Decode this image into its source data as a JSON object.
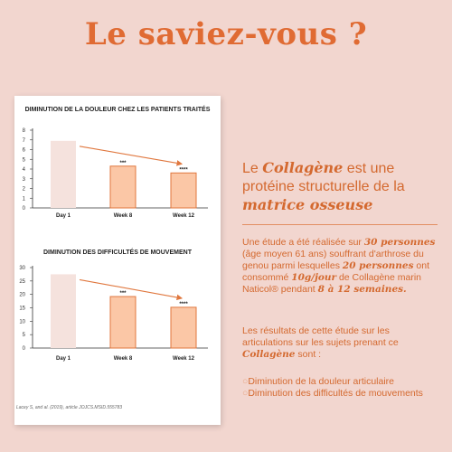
{
  "headline": "Le saviez-vous ?",
  "chart_data": [
    {
      "type": "bar",
      "title": "DIMINUTION DE LA DOULEUR CHEZ LES PATIENTS TRAITÉS",
      "categories": [
        "Day 1",
        "Week 8",
        "Week 12"
      ],
      "values": [
        6.9,
        4.3,
        3.6
      ],
      "significance": [
        "",
        "***",
        "****"
      ],
      "ylim": [
        0,
        8
      ],
      "yticks": [
        "0",
        "1",
        "2",
        "3",
        "4",
        "5",
        "6",
        "7",
        "8"
      ],
      "trend_arrow": true,
      "colors": {
        "baseline": "#f5e2dd",
        "treated": "#fbc7a6",
        "treated_border": "#e0773e",
        "arrow": "#e0773e"
      }
    },
    {
      "type": "bar",
      "title": "DIMINUTION DES DIFFICULTÉS DE MOUVEMENT",
      "categories": [
        "Day 1",
        "Week 8",
        "Week 12"
      ],
      "values": [
        27.5,
        19.2,
        15.2
      ],
      "significance": [
        "",
        "***",
        "****"
      ],
      "ylim": [
        0,
        30
      ],
      "yticks": [
        "0",
        "5",
        "10",
        "15",
        "20",
        "25",
        "30"
      ],
      "trend_arrow": true,
      "colors": {
        "baseline": "#f5e2dd",
        "treated": "#fbc7a6",
        "treated_border": "#e0773e",
        "arrow": "#e0773e"
      }
    }
  ],
  "citation": "Lacey S, and al. (2019), article JOJCS.MSID.555783",
  "lead": {
    "part1": "Le ",
    "collagen": "Collagène",
    "part2": " est une protéine structurelle de la ",
    "matrix": "matrice osseuse"
  },
  "study": {
    "t1": "Une étude a été réalisée sur ",
    "n1": "30 personnes",
    "t2": " (âge moyen 61 ans) souffrant d'arthrose du genou parmi lesquelles ",
    "n2": "20 personnes",
    "t3": " ont consommé ",
    "dose": "10g/jour",
    "t4": " de Collagène marin Naticol® pendant ",
    "duration": "8 à 12 semaines."
  },
  "results": {
    "t1": "Les résultats de cette étude sur les articulations sur les sujets prenant ce ",
    "collagen": "Collagène",
    "t2": " sont :"
  },
  "findings": [
    "Diminution de la douleur articulaire",
    "Diminution des difficultés de mouvements"
  ],
  "bullet_glyph": "○"
}
